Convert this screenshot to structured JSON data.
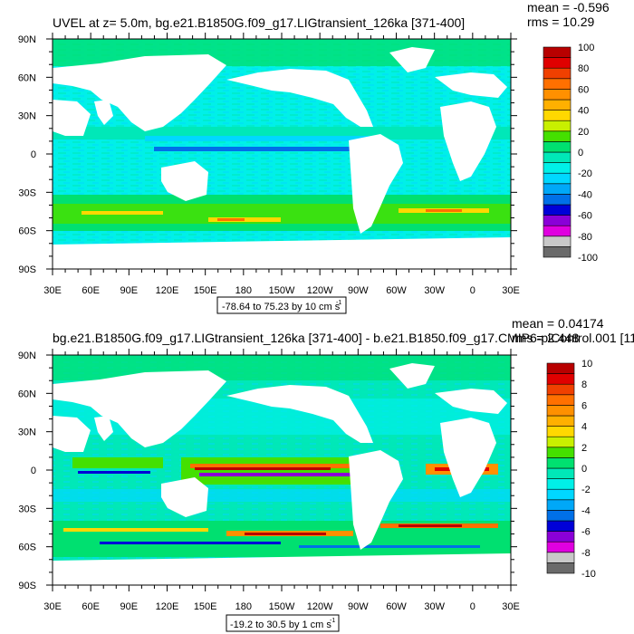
{
  "chart_data": [
    {
      "type": "heatmap",
      "title": "UVEL at z=   5.0m, bg.e21.B1850G.f09_g17.LIGtransient_126ka [371-400]",
      "stats": {
        "mean": "mean = -0.596",
        "rms": "rms = 10.29"
      },
      "range_text": "-78.64 to 75.23 by 10 cm s",
      "units_exponent": "-1",
      "x_ticks": [
        "30E",
        "60E",
        "90E",
        "120E",
        "150E",
        "180",
        "150W",
        "120W",
        "90W",
        "60W",
        "30W",
        "0",
        "30E"
      ],
      "y_ticks": [
        "90N",
        "60N",
        "30N",
        "0",
        "30S",
        "60S",
        "90S"
      ],
      "colorbar": {
        "labels": [
          "100",
          "80",
          "60",
          "40",
          "20",
          "0",
          "-20",
          "-40",
          "-60",
          "-80",
          "-100"
        ],
        "colors": [
          "#6a6a6a",
          "#c8c8c8",
          "#e000e0",
          "#8a00d8",
          "#0000d8",
          "#0070e8",
          "#00a8f8",
          "#00d8ff",
          "#00f0e8",
          "#00e8b8",
          "#00e070",
          "#44e000",
          "#c8f000",
          "#ffd800",
          "#ffb000",
          "#ff9000",
          "#ff7000",
          "#f04000",
          "#e00000",
          "#b80000"
        ]
      }
    },
    {
      "type": "heatmap",
      "title": "bg.e21.B1850G.f09_g17.LIGtransient_126ka [371-400] - b.e21.B1850.f09_g17.CMIP6-piControl.001 [11",
      "stats": {
        "mean": "mean = 0.04174",
        "rms": "rms = 2.448"
      },
      "range_text": "-19.2 to 30.5 by 1 cm s",
      "units_exponent": "-1",
      "x_ticks": [
        "30E",
        "60E",
        "90E",
        "120E",
        "150E",
        "180",
        "150W",
        "120W",
        "90W",
        "60W",
        "30W",
        "0",
        "30E"
      ],
      "y_ticks": [
        "90N",
        "60N",
        "30N",
        "0",
        "30S",
        "60S",
        "90S"
      ],
      "colorbar": {
        "labels": [
          "10",
          "8",
          "6",
          "4",
          "2",
          "0",
          "-2",
          "-4",
          "-6",
          "-8",
          "-10"
        ],
        "colors": [
          "#6a6a6a",
          "#c8c8c8",
          "#e000e0",
          "#8a00d8",
          "#0000d8",
          "#0070e8",
          "#00a8f8",
          "#00d8ff",
          "#00f0e8",
          "#00e8b8",
          "#00e070",
          "#44e000",
          "#c8f000",
          "#ffd800",
          "#ffb000",
          "#ff9000",
          "#ff7000",
          "#f04000",
          "#e00000",
          "#b80000"
        ]
      }
    }
  ]
}
